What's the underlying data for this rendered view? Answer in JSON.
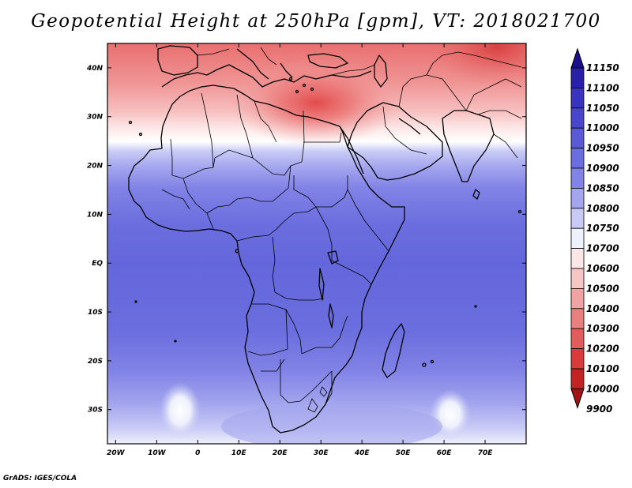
{
  "title": "Geopotential Height at 250hPa [gpm], VT: 2018021700",
  "credit": "GrADS: IGES/COLA",
  "map": {
    "lon_ticks": [
      "20W",
      "10W",
      "0",
      "10E",
      "20E",
      "30E",
      "40E",
      "50E",
      "60E",
      "70E"
    ],
    "lat_ticks": [
      "40N",
      "30N",
      "20N",
      "10N",
      "EQ",
      "10S",
      "20S",
      "30S"
    ]
  },
  "colorbar": {
    "labels": [
      "11150",
      "11100",
      "11050",
      "11000",
      "10950",
      "10900",
      "10850",
      "10800",
      "10750",
      "10700",
      "10600",
      "10500",
      "10400",
      "10300",
      "10200",
      "10100",
      "10000",
      "9900"
    ],
    "colors": [
      "#1a0e8c",
      "#2a1fa8",
      "#3a33bf",
      "#4a46cc",
      "#5a5ad6",
      "#6b6ede",
      "#8283e6",
      "#a3a5ee",
      "#c8caf5",
      "#eef0fc",
      "#fde6e6",
      "#f8c5c5",
      "#f1a3a3",
      "#e98080",
      "#e05d5d",
      "#d93b3b",
      "#c22424",
      "#a31414"
    ]
  },
  "chart_data": {
    "type": "heatmap",
    "title": "Geopotential Height at 250hPa [gpm], VT: 2018021700",
    "variable": "Geopotential Height",
    "level": "250hPa",
    "units": "gpm",
    "valid_time": "2018021700",
    "lon_range": [
      -22,
      80
    ],
    "lat_range": [
      -37,
      45
    ],
    "contour_levels": [
      9900,
      10000,
      10100,
      10200,
      10300,
      10400,
      10500,
      10600,
      10700,
      10750,
      10800,
      10850,
      10900,
      10950,
      11000,
      11050,
      11100,
      11150
    ]
  }
}
